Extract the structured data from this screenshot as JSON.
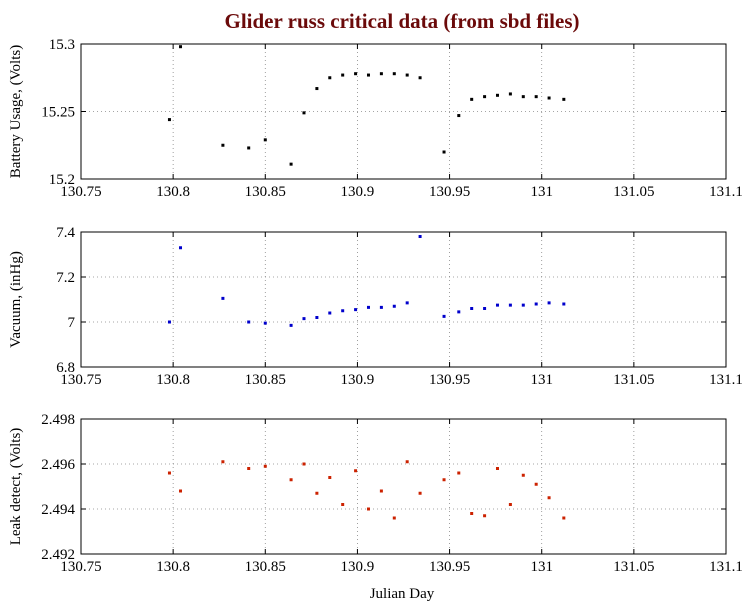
{
  "chart_data": [
    {
      "type": "scatter",
      "title": "Glider russ critical data (from sbd files)",
      "title_color": "#6b0a0a",
      "ylabel": "Battery Usage, (Volts)",
      "xlabel": "",
      "xlim": [
        130.75,
        131.1
      ],
      "ylim": [
        15.2,
        15.3
      ],
      "xticks": [
        "130.75",
        "130.8",
        "130.85",
        "130.9",
        "130.95",
        "131",
        "131.05",
        "131.1"
      ],
      "yticks": [
        "15.2",
        "15.25",
        "15.3"
      ],
      "grid": true,
      "color": "#000000",
      "series": [
        {
          "x": [
            130.798,
            130.804,
            130.827,
            130.841,
            130.85,
            130.864,
            130.871,
            130.878,
            130.885,
            130.892,
            130.899,
            130.906,
            130.913,
            130.92,
            130.927,
            130.934,
            130.947,
            130.955,
            130.962,
            130.969,
            130.976,
            130.983,
            130.99,
            130.997,
            131.004,
            131.012
          ],
          "y": [
            15.244,
            15.298,
            15.225,
            15.223,
            15.229,
            15.211,
            15.249,
            15.267,
            15.275,
            15.277,
            15.278,
            15.277,
            15.278,
            15.278,
            15.277,
            15.275,
            15.22,
            15.247,
            15.259,
            15.261,
            15.262,
            15.263,
            15.261,
            15.261,
            15.26,
            15.259
          ]
        }
      ]
    },
    {
      "type": "scatter",
      "ylabel": "Vacuum, (inHg)",
      "xlabel": "",
      "xlim": [
        130.75,
        131.1
      ],
      "ylim": [
        6.8,
        7.4
      ],
      "xticks": [
        "130.75",
        "130.8",
        "130.85",
        "130.9",
        "130.95",
        "131",
        "131.05",
        "131.1"
      ],
      "yticks": [
        "6.8",
        "7",
        "7.2",
        "7.4"
      ],
      "grid": true,
      "color": "#0000cc",
      "series": [
        {
          "x": [
            130.798,
            130.804,
            130.827,
            130.841,
            130.85,
            130.864,
            130.871,
            130.878,
            130.885,
            130.892,
            130.899,
            130.906,
            130.913,
            130.92,
            130.927,
            130.934,
            130.947,
            130.955,
            130.962,
            130.969,
            130.976,
            130.983,
            130.99,
            130.997,
            131.004,
            131.012
          ],
          "y": [
            7.0,
            7.33,
            7.105,
            7.0,
            6.995,
            6.985,
            7.015,
            7.02,
            7.04,
            7.05,
            7.055,
            7.065,
            7.065,
            7.07,
            7.085,
            7.38,
            7.025,
            7.045,
            7.06,
            7.06,
            7.075,
            7.075,
            7.075,
            7.08,
            7.085,
            7.08
          ]
        }
      ]
    },
    {
      "type": "scatter",
      "ylabel": "Leak detect, (Volts)",
      "xlabel": "Julian Day",
      "xlim": [
        130.75,
        131.1
      ],
      "ylim": [
        2.492,
        2.498
      ],
      "xticks": [
        "130.75",
        "130.8",
        "130.85",
        "130.9",
        "130.95",
        "131",
        "131.05",
        "131.1"
      ],
      "yticks": [
        "2.492",
        "2.494",
        "2.496",
        "2.498"
      ],
      "grid": true,
      "color": "#cc2200",
      "series": [
        {
          "x": [
            130.798,
            130.804,
            130.827,
            130.841,
            130.85,
            130.864,
            130.871,
            130.878,
            130.885,
            130.892,
            130.899,
            130.906,
            130.913,
            130.92,
            130.927,
            130.934,
            130.947,
            130.955,
            130.962,
            130.969,
            130.976,
            130.983,
            130.99,
            130.997,
            131.004,
            131.012
          ],
          "y": [
            2.4956,
            2.4948,
            2.4961,
            2.4958,
            2.4959,
            2.4953,
            2.496,
            2.4947,
            2.4954,
            2.4942,
            2.4957,
            2.494,
            2.4948,
            2.4936,
            2.4961,
            2.4947,
            2.4953,
            2.4956,
            2.4938,
            2.4937,
            2.4958,
            2.4942,
            2.4955,
            2.4951,
            2.4945,
            2.4936
          ]
        }
      ]
    }
  ]
}
